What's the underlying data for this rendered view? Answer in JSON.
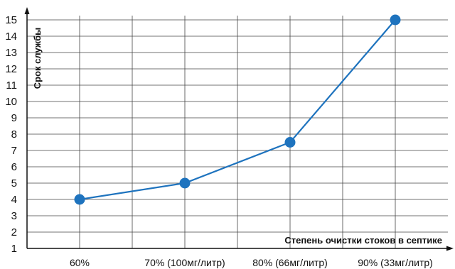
{
  "chart_data": {
    "type": "line",
    "categories": [
      "60%",
      "70% (100мг/литр)",
      "80% (66мг/литр)",
      "90% (33мг/литр)"
    ],
    "values": [
      4,
      5,
      7.5,
      15
    ],
    "xlabel": "Степень очистки стоков в септике",
    "ylabel": "Срок службы",
    "ylim": [
      1,
      15
    ],
    "y_ticks": [
      1,
      2,
      3,
      4,
      5,
      6,
      7,
      8,
      9,
      10,
      11,
      12,
      13,
      14,
      15
    ],
    "grid": true,
    "colors": {
      "line": "#1e73be",
      "marker": "#1e73be",
      "grid": "#444444",
      "axis": "#111111"
    }
  }
}
